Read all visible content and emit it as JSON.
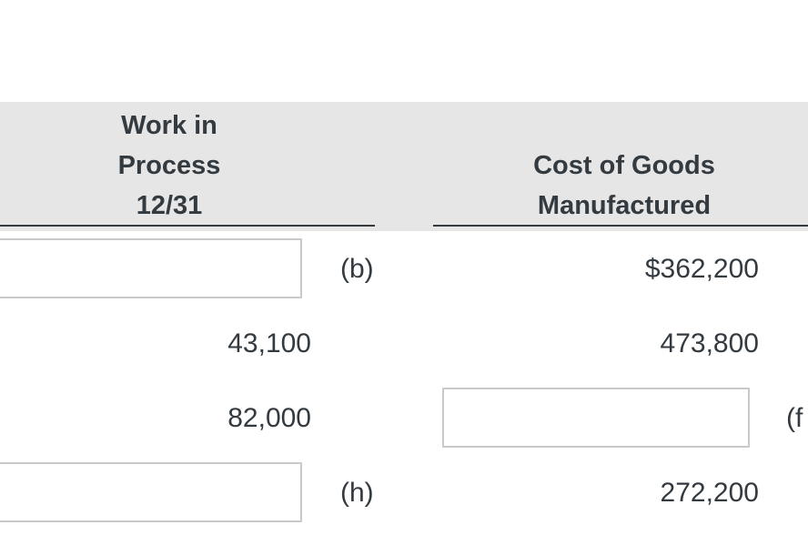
{
  "header": {
    "work_in_process": [
      "Work in",
      "Process",
      "12/31"
    ],
    "cost_of_goods": [
      "Cost of Goods",
      "Manufactured"
    ]
  },
  "rows": [
    {
      "wip_input": "",
      "marker": "(b)",
      "cogm_value": "$362,200"
    },
    {
      "wip_value": "43,100",
      "cogm_value": "473,800"
    },
    {
      "wip_value": "82,000",
      "cogm_input": "",
      "marker": "(f"
    },
    {
      "wip_input": "",
      "marker": "(h)",
      "cogm_value": "272,200"
    }
  ]
}
